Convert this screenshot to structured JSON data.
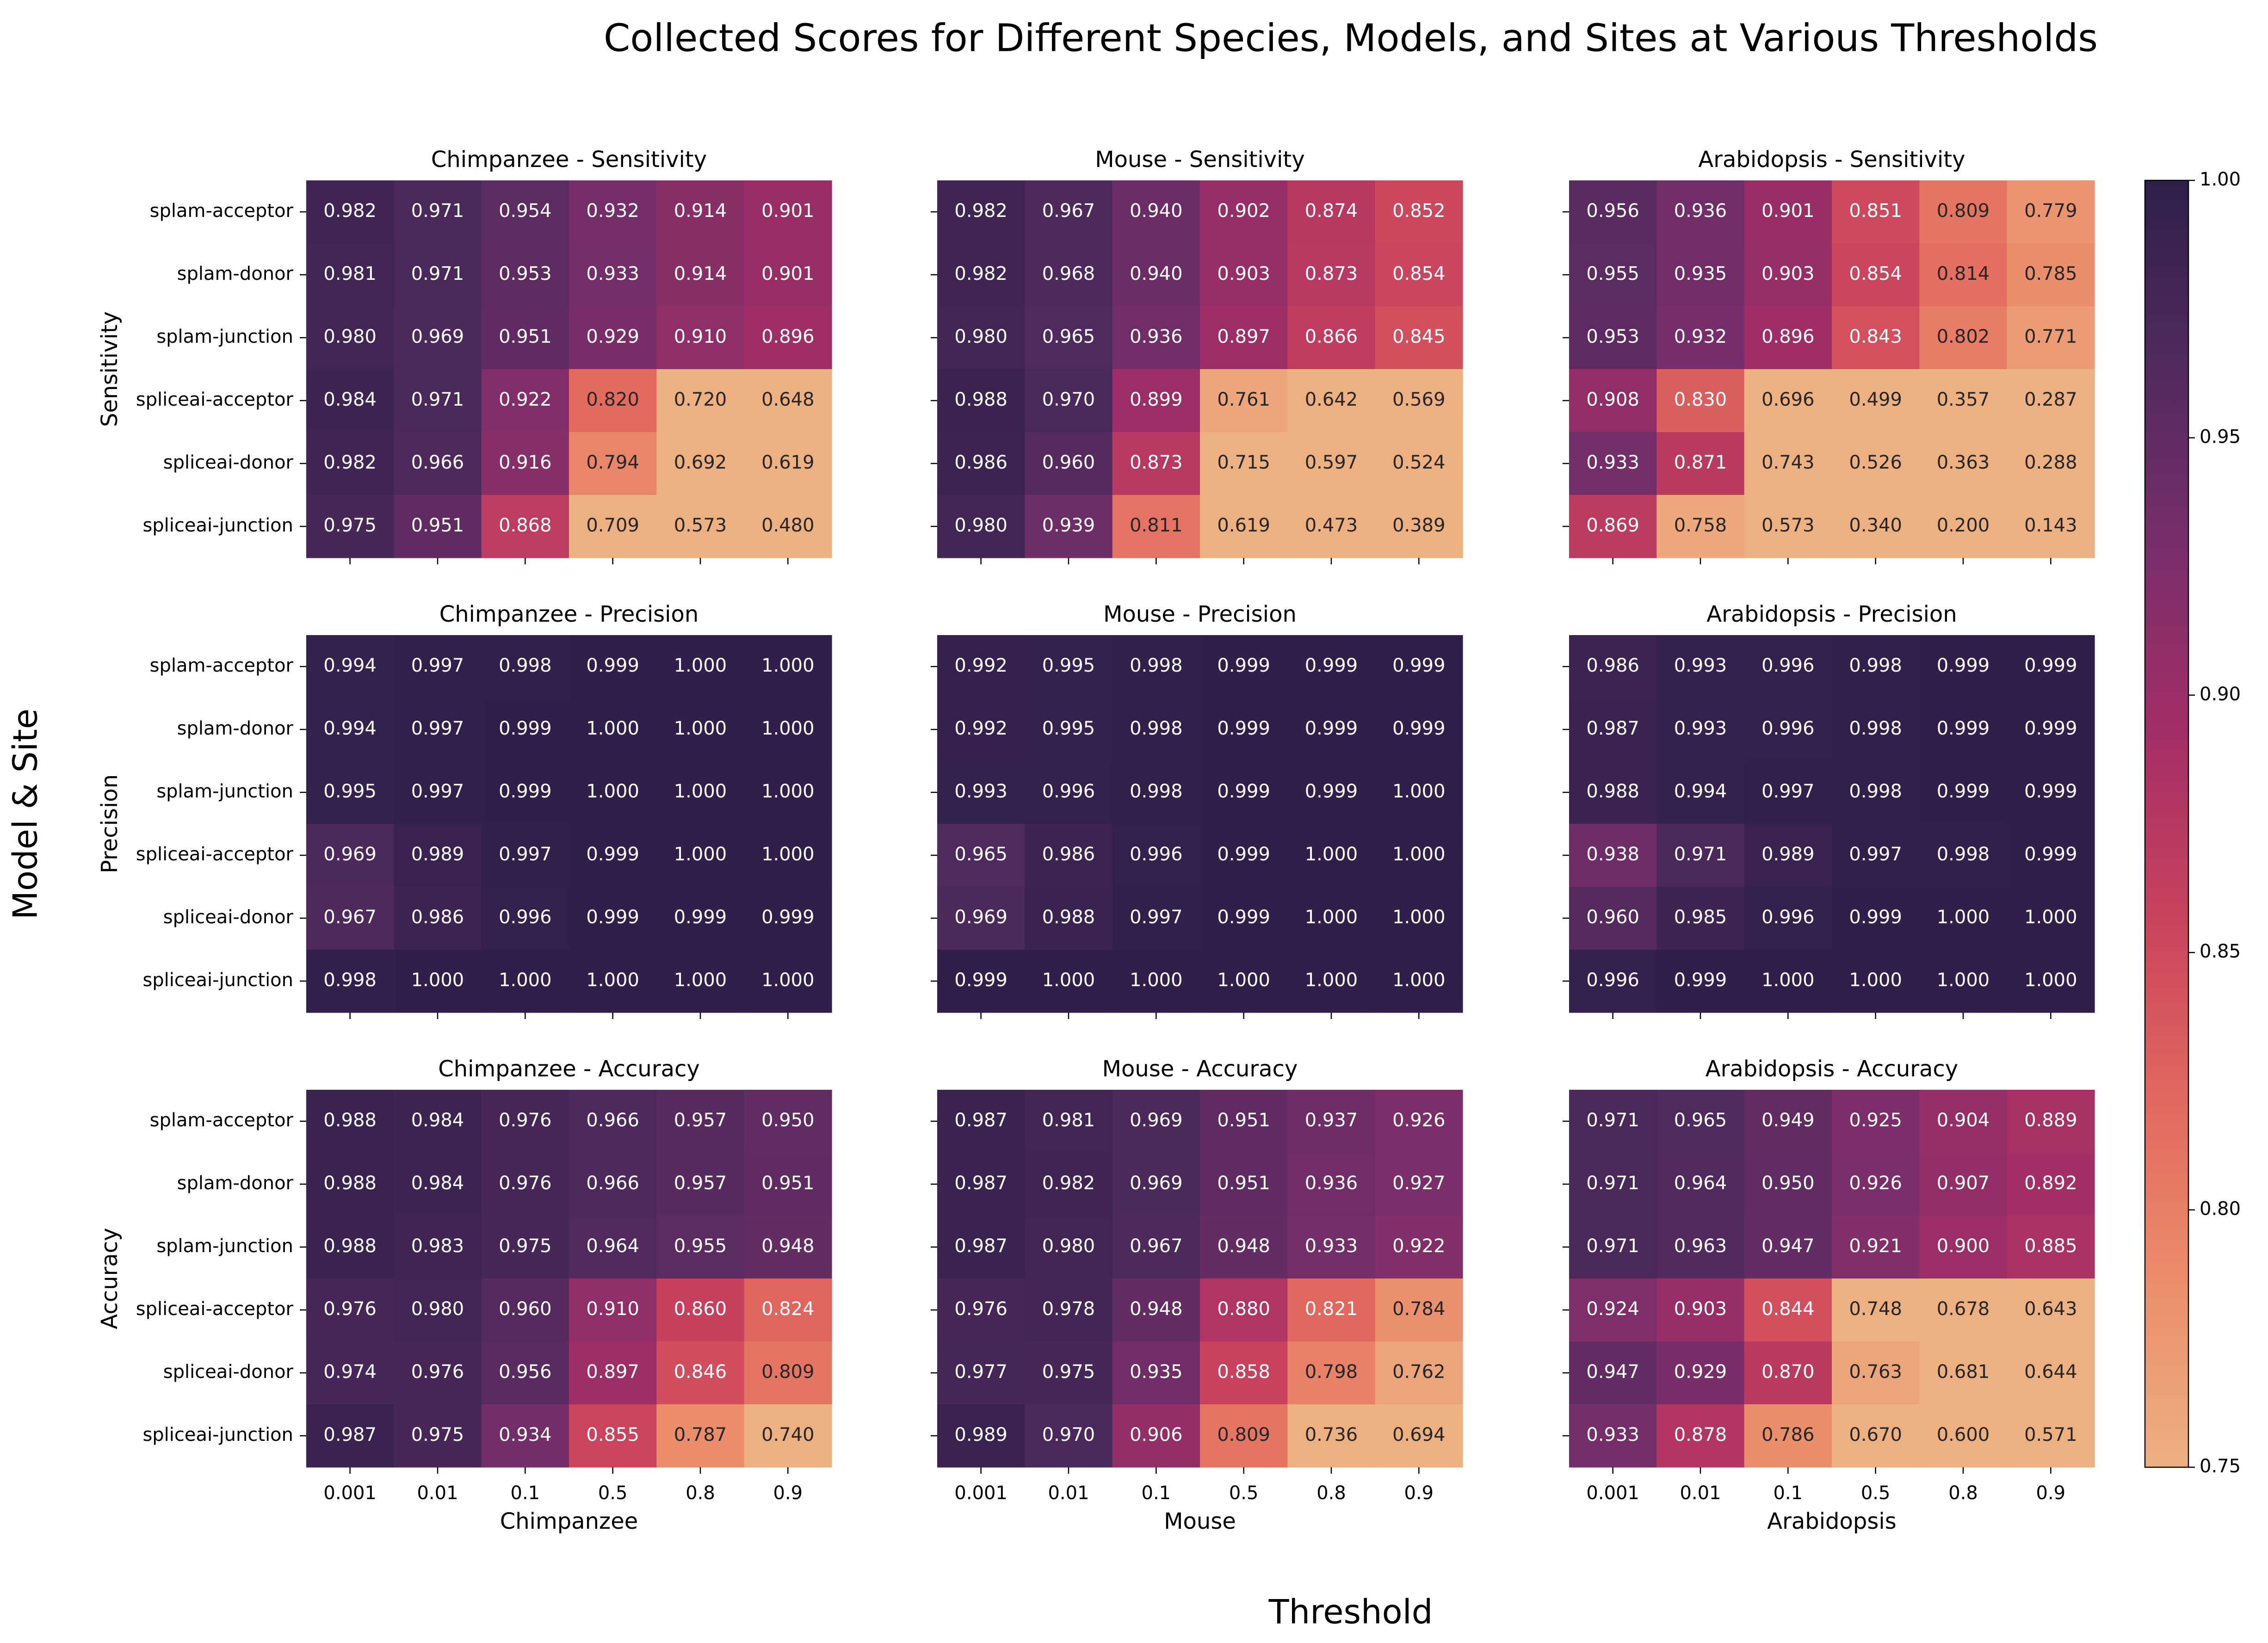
{
  "figure": {
    "title": "Collected Scores for Different Species, Models, and Sites at Various Thresholds",
    "xlabel": "Threshold",
    "ylabel": "Model & Site"
  },
  "colorbar": {
    "ticks": [
      "0.75",
      "0.80",
      "0.85",
      "0.90",
      "0.95",
      "1.00"
    ],
    "range": [
      0.75,
      1.0
    ],
    "colormap": [
      "#edb081",
      "#eb8e6b",
      "#e2685f",
      "#c9425d",
      "#a32e66",
      "#792e6a",
      "#502a5e",
      "#2f1f4a"
    ]
  },
  "chart_data": {
    "type": "heatmap",
    "thresholds": [
      "0.001",
      "0.01",
      "0.1",
      "0.5",
      "0.8",
      "0.9"
    ],
    "rows": [
      "splam-acceptor",
      "splam-donor",
      "splam-junction",
      "spliceai-acceptor",
      "spliceai-donor",
      "spliceai-junction"
    ],
    "species": [
      "Chimpanzee",
      "Mouse",
      "Arabidopsis"
    ],
    "metrics": [
      "Sensitivity",
      "Precision",
      "Accuracy"
    ],
    "value_range": [
      0.75,
      1.0
    ],
    "panels": [
      {
        "metric": "Sensitivity",
        "species": "Chimpanzee",
        "title": "Chimpanzee - Sensitivity",
        "values": [
          [
            0.982,
            0.971,
            0.954,
            0.932,
            0.914,
            0.901
          ],
          [
            0.981,
            0.971,
            0.953,
            0.933,
            0.914,
            0.901
          ],
          [
            0.98,
            0.969,
            0.951,
            0.929,
            0.91,
            0.896
          ],
          [
            0.984,
            0.971,
            0.922,
            0.82,
            0.72,
            0.648
          ],
          [
            0.982,
            0.966,
            0.916,
            0.794,
            0.692,
            0.619
          ],
          [
            0.975,
            0.951,
            0.868,
            0.709,
            0.573,
            0.48
          ]
        ]
      },
      {
        "metric": "Sensitivity",
        "species": "Mouse",
        "title": "Mouse - Sensitivity",
        "values": [
          [
            0.982,
            0.967,
            0.94,
            0.902,
            0.874,
            0.852
          ],
          [
            0.982,
            0.968,
            0.94,
            0.903,
            0.873,
            0.854
          ],
          [
            0.98,
            0.965,
            0.936,
            0.897,
            0.866,
            0.845
          ],
          [
            0.988,
            0.97,
            0.899,
            0.761,
            0.642,
            0.569
          ],
          [
            0.986,
            0.96,
            0.873,
            0.715,
            0.597,
            0.524
          ],
          [
            0.98,
            0.939,
            0.811,
            0.619,
            0.473,
            0.389
          ]
        ]
      },
      {
        "metric": "Sensitivity",
        "species": "Arabidopsis",
        "title": "Arabidopsis - Sensitivity",
        "values": [
          [
            0.956,
            0.936,
            0.901,
            0.851,
            0.809,
            0.779
          ],
          [
            0.955,
            0.935,
            0.903,
            0.854,
            0.814,
            0.785
          ],
          [
            0.953,
            0.932,
            0.896,
            0.843,
            0.802,
            0.771
          ],
          [
            0.908,
            0.83,
            0.696,
            0.499,
            0.357,
            0.287
          ],
          [
            0.933,
            0.871,
            0.743,
            0.526,
            0.363,
            0.288
          ],
          [
            0.869,
            0.758,
            0.573,
            0.34,
            0.2,
            0.143
          ]
        ]
      },
      {
        "metric": "Precision",
        "species": "Chimpanzee",
        "title": "Chimpanzee - Precision",
        "values": [
          [
            0.994,
            0.997,
            0.998,
            0.999,
            1.0,
            1.0
          ],
          [
            0.994,
            0.997,
            0.999,
            1.0,
            1.0,
            1.0
          ],
          [
            0.995,
            0.997,
            0.999,
            1.0,
            1.0,
            1.0
          ],
          [
            0.969,
            0.989,
            0.997,
            0.999,
            1.0,
            1.0
          ],
          [
            0.967,
            0.986,
            0.996,
            0.999,
            0.999,
            0.999
          ],
          [
            0.998,
            1.0,
            1.0,
            1.0,
            1.0,
            1.0
          ]
        ]
      },
      {
        "metric": "Precision",
        "species": "Mouse",
        "title": "Mouse - Precision",
        "values": [
          [
            0.992,
            0.995,
            0.998,
            0.999,
            0.999,
            0.999
          ],
          [
            0.992,
            0.995,
            0.998,
            0.999,
            0.999,
            0.999
          ],
          [
            0.993,
            0.996,
            0.998,
            0.999,
            0.999,
            1.0
          ],
          [
            0.965,
            0.986,
            0.996,
            0.999,
            1.0,
            1.0
          ],
          [
            0.969,
            0.988,
            0.997,
            0.999,
            1.0,
            1.0
          ],
          [
            0.999,
            1.0,
            1.0,
            1.0,
            1.0,
            1.0
          ]
        ]
      },
      {
        "metric": "Precision",
        "species": "Arabidopsis",
        "title": "Arabidopsis - Precision",
        "values": [
          [
            0.986,
            0.993,
            0.996,
            0.998,
            0.999,
            0.999
          ],
          [
            0.987,
            0.993,
            0.996,
            0.998,
            0.999,
            0.999
          ],
          [
            0.988,
            0.994,
            0.997,
            0.998,
            0.999,
            0.999
          ],
          [
            0.938,
            0.971,
            0.989,
            0.997,
            0.998,
            0.999
          ],
          [
            0.96,
            0.985,
            0.996,
            0.999,
            1.0,
            1.0
          ],
          [
            0.996,
            0.999,
            1.0,
            1.0,
            1.0,
            1.0
          ]
        ]
      },
      {
        "metric": "Accuracy",
        "species": "Chimpanzee",
        "title": "Chimpanzee - Accuracy",
        "values": [
          [
            0.988,
            0.984,
            0.976,
            0.966,
            0.957,
            0.95
          ],
          [
            0.988,
            0.984,
            0.976,
            0.966,
            0.957,
            0.951
          ],
          [
            0.988,
            0.983,
            0.975,
            0.964,
            0.955,
            0.948
          ],
          [
            0.976,
            0.98,
            0.96,
            0.91,
            0.86,
            0.824
          ],
          [
            0.974,
            0.976,
            0.956,
            0.897,
            0.846,
            0.809
          ],
          [
            0.987,
            0.975,
            0.934,
            0.855,
            0.787,
            0.74
          ]
        ]
      },
      {
        "metric": "Accuracy",
        "species": "Mouse",
        "title": "Mouse - Accuracy",
        "values": [
          [
            0.987,
            0.981,
            0.969,
            0.951,
            0.937,
            0.926
          ],
          [
            0.987,
            0.982,
            0.969,
            0.951,
            0.936,
            0.927
          ],
          [
            0.987,
            0.98,
            0.967,
            0.948,
            0.933,
            0.922
          ],
          [
            0.976,
            0.978,
            0.948,
            0.88,
            0.821,
            0.784
          ],
          [
            0.977,
            0.975,
            0.935,
            0.858,
            0.798,
            0.762
          ],
          [
            0.989,
            0.97,
            0.906,
            0.809,
            0.736,
            0.694
          ]
        ]
      },
      {
        "metric": "Accuracy",
        "species": "Arabidopsis",
        "title": "Arabidopsis - Accuracy",
        "values": [
          [
            0.971,
            0.965,
            0.949,
            0.925,
            0.904,
            0.889
          ],
          [
            0.971,
            0.964,
            0.95,
            0.926,
            0.907,
            0.892
          ],
          [
            0.971,
            0.963,
            0.947,
            0.921,
            0.9,
            0.885
          ],
          [
            0.924,
            0.903,
            0.844,
            0.748,
            0.678,
            0.643
          ],
          [
            0.947,
            0.929,
            0.87,
            0.763,
            0.681,
            0.644
          ],
          [
            0.933,
            0.878,
            0.786,
            0.67,
            0.6,
            0.571
          ]
        ]
      }
    ]
  }
}
